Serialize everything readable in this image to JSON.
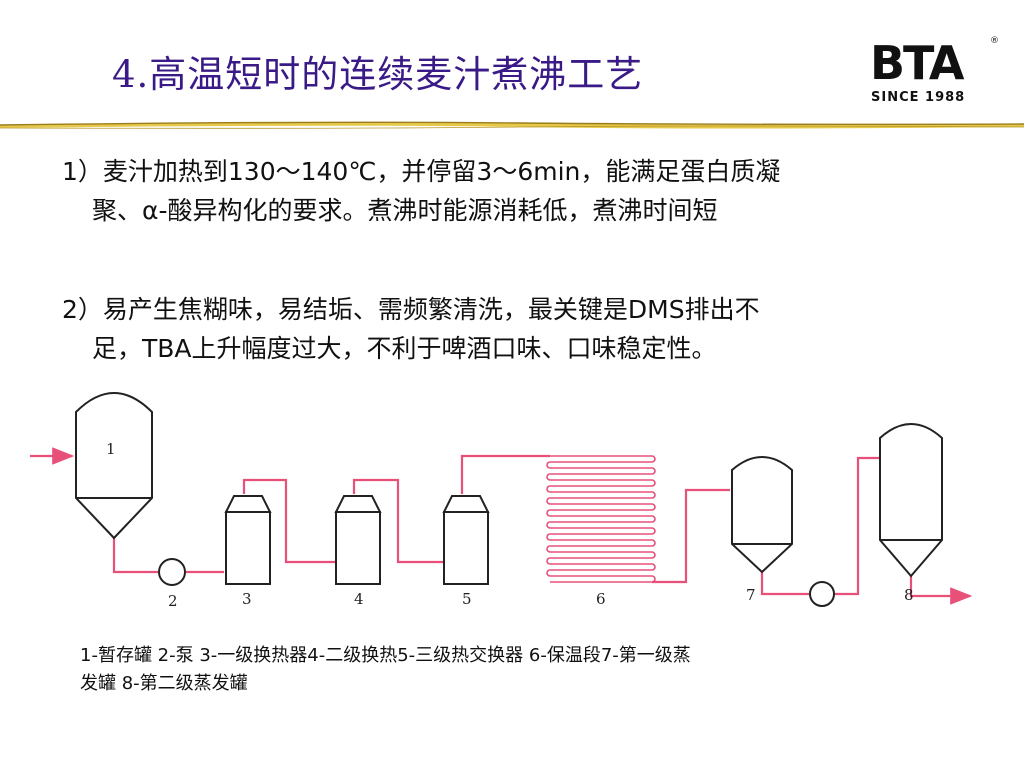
{
  "title": "4.高温短时的连续麦汁煮沸工艺",
  "logo": {
    "word": "BTA",
    "registered": "®",
    "since": "SINCE 1988"
  },
  "paragraphs": [
    {
      "line1": "1）麦汁加热到130～140℃，并停留3～6min，能满足蛋白质凝",
      "line2": "聚、α-酸异构化的要求。煮沸时能源消耗低，煮沸时间短"
    },
    {
      "line1": "2）易产生焦糊味，易结垢、需频繁清洗，最关键是DMS排出不",
      "line2": "足，TBA上升幅度过大，不利于啤酒口味、口味稳定性。"
    }
  ],
  "diagram": {
    "labels": [
      "1",
      "2",
      "3",
      "4",
      "5",
      "6",
      "7",
      "8"
    ],
    "pipe_color": "#e8507a",
    "vessel_color": "#222222"
  },
  "legend": {
    "line1": "1-暂存罐 2-泵 3-一级换热器4-二级换热5-三级热交换器 6-保温段7-第一级蒸",
    "line2": "发罐 8-第二级蒸发罐"
  }
}
